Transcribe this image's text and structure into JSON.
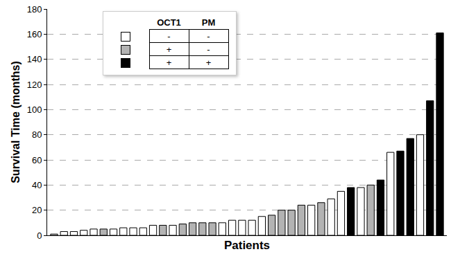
{
  "chart_data": {
    "type": "bar",
    "x_label": "Patients",
    "y_label": "Survival Time (months)",
    "categories": [
      null,
      null,
      null,
      null,
      null,
      null,
      null,
      null,
      null,
      null,
      null,
      null,
      null,
      null,
      null,
      null,
      null,
      null,
      null,
      null,
      null,
      null,
      null,
      null,
      null,
      null,
      null,
      null,
      null,
      null,
      null,
      null,
      null,
      null,
      null,
      null,
      null,
      null,
      null,
      null
    ],
    "values": [
      1,
      3,
      3,
      4,
      5,
      5,
      5,
      6,
      6,
      6,
      8,
      8,
      8,
      9,
      10,
      10,
      10,
      10,
      12,
      12,
      12,
      15,
      16,
      20,
      20,
      24,
      24,
      26,
      29,
      35,
      38,
      38,
      40,
      44,
      66,
      67,
      77,
      80,
      107,
      161
    ],
    "colors": [
      "#ffffff",
      "#ffffff",
      "#ffffff",
      "#ffffff",
      "#ffffff",
      "#b3b3b3",
      "#ffffff",
      "#ffffff",
      "#ffffff",
      "#ffffff",
      "#ffffff",
      "#b3b3b3",
      "#ffffff",
      "#b3b3b3",
      "#b3b3b3",
      "#b3b3b3",
      "#b3b3b3",
      "#ffffff",
      "#ffffff",
      "#ffffff",
      "#ffffff",
      "#ffffff",
      "#b3b3b3",
      "#b3b3b3",
      "#b3b3b3",
      "#b3b3b3",
      "#ffffff",
      "#b3b3b3",
      "#ffffff",
      "#ffffff",
      "#000000",
      "#ffffff",
      "#b3b3b3",
      "#000000",
      "#ffffff",
      "#000000",
      "#000000",
      "#ffffff",
      "#000000",
      "#000000"
    ],
    "ylim": [
      0,
      180
    ],
    "yticks": [
      0,
      20,
      40,
      60,
      80,
      100,
      120,
      140,
      160,
      180
    ],
    "grid": true,
    "tick_labels": "y",
    "legend_table": {
      "header": [
        "OCT1",
        "PM"
      ],
      "rows": [
        [
          "-",
          "-"
        ],
        [
          "+",
          "-"
        ],
        [
          "+",
          "+"
        ]
      ],
      "colors": [
        "#ffffff",
        "#b3b3b3",
        "#000000"
      ]
    }
  }
}
